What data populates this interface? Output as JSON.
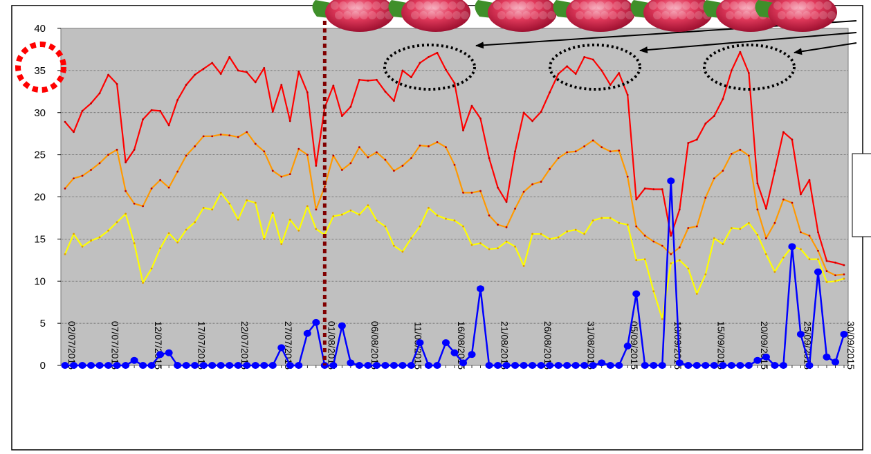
{
  "chart_data": {
    "type": "line",
    "title": "",
    "xlabel": "",
    "ylabel": "",
    "ylim": [
      0,
      40
    ],
    "y_ticks": [
      "0",
      "5",
      "10",
      "15",
      "20",
      "25",
      "30",
      "35",
      "40"
    ],
    "x_tick_labels": [
      "02/07/2015",
      "07/07/2015",
      "12/07/2015",
      "17/07/2015",
      "22/07/2015",
      "27/07/2015",
      "01/08/2015",
      "06/08/2015",
      "11/08/2015",
      "16/08/2015",
      "21/08/2015",
      "26/08/2015",
      "31/08/2015",
      "05/09/2015",
      "10/09/2015",
      "15/09/2015",
      "20/09/2015",
      "25/09/2015",
      "30/09/2015"
    ],
    "x_start": "02/07/2015",
    "x_end": "30/09/2015",
    "marker_date": "01/08/2015",
    "grid": "horizontal",
    "plot_background": "#c0c0c0",
    "series": [
      {
        "color": "#ff0000",
        "values": [
          28.9,
          27.7,
          30.2,
          31.1,
          32.3,
          34.5,
          33.4,
          24.1,
          25.6,
          29.2,
          30.3,
          30.2,
          28.5,
          31.5,
          33.3,
          34.5,
          35.2,
          35.9,
          34.6,
          36.6,
          35.0,
          34.8,
          33.6,
          35.3,
          30.1,
          33.3,
          29.0,
          34.9,
          32.4,
          23.7,
          30.6,
          33.2,
          29.6,
          30.7,
          33.9,
          33.8,
          33.9,
          32.5,
          31.4,
          35.0,
          34.2,
          35.9,
          36.6,
          37.1,
          35.1,
          33.5,
          27.9,
          30.8,
          29.3,
          24.6,
          21.1,
          19.4,
          25.4,
          30.0,
          29.0,
          30.1,
          32.4,
          34.6,
          35.5,
          34.6,
          36.6,
          36.3,
          35.0,
          33.3,
          34.7,
          32.1,
          19.7,
          21.0,
          20.9,
          20.9,
          15.4,
          18.5,
          26.4,
          26.8,
          28.7,
          29.6,
          31.6,
          35.0,
          37.2,
          34.7,
          21.6,
          18.6,
          23.1,
          27.7,
          26.8,
          20.3,
          22.0,
          15.8,
          12.4,
          12.2,
          11.9
        ]
      },
      {
        "color": "#ff9900",
        "values": [
          21.0,
          22.2,
          22.5,
          23.2,
          24.0,
          25.0,
          25.6,
          20.7,
          19.2,
          18.9,
          21.0,
          22.0,
          21.1,
          23.0,
          24.9,
          26.0,
          27.2,
          27.2,
          27.4,
          27.3,
          27.1,
          27.7,
          26.3,
          25.4,
          23.1,
          22.4,
          22.7,
          25.7,
          25.0,
          18.5,
          21.2,
          24.9,
          23.2,
          24.0,
          25.9,
          24.7,
          25.3,
          24.4,
          23.1,
          23.7,
          24.6,
          26.1,
          26.0,
          26.5,
          25.9,
          23.8,
          20.5,
          20.5,
          20.7,
          17.8,
          16.7,
          16.4,
          18.6,
          20.6,
          21.5,
          21.8,
          23.3,
          24.6,
          25.3,
          25.4,
          26.0,
          26.7,
          25.9,
          25.4,
          25.5,
          22.4,
          16.5,
          15.4,
          14.7,
          14.2,
          13.2,
          14.0,
          16.3,
          16.5,
          19.9,
          22.2,
          23.1,
          25.1,
          25.6,
          24.9,
          18.5,
          15.1,
          16.9,
          19.7,
          19.3,
          15.8,
          15.4,
          13.6,
          11.2,
          10.7,
          10.8
        ]
      },
      {
        "color": "#ffff00",
        "values": [
          13.2,
          15.6,
          14.1,
          14.8,
          15.2,
          16.0,
          17.0,
          18.0,
          14.5,
          9.8,
          11.5,
          13.9,
          15.7,
          14.6,
          16.1,
          17.0,
          18.7,
          18.5,
          20.5,
          19.2,
          17.3,
          19.6,
          19.3,
          15.0,
          18.1,
          14.4,
          17.3,
          16.0,
          18.9,
          16.2,
          15.5,
          17.7,
          17.9,
          18.4,
          17.9,
          19.0,
          17.2,
          16.5,
          14.2,
          13.5,
          15.1,
          16.5,
          18.7,
          17.8,
          17.4,
          17.2,
          16.5,
          14.3,
          14.5,
          13.8,
          13.9,
          14.7,
          14.1,
          11.8,
          15.6,
          15.6,
          15.0,
          15.2,
          15.9,
          16.1,
          15.6,
          17.2,
          17.5,
          17.5,
          16.9,
          16.7,
          12.5,
          12.6,
          8.8,
          5.5,
          12.1,
          12.5,
          11.5,
          8.5,
          10.8,
          15.1,
          14.4,
          16.3,
          16.2,
          16.9,
          15.5,
          13.2,
          11.1,
          12.8,
          14.1,
          13.8,
          12.6,
          12.6,
          9.9,
          10.0,
          10.3
        ]
      },
      {
        "color": "#0000ff",
        "values": [
          0,
          0,
          0,
          0,
          0,
          0,
          0,
          0,
          0.6,
          0,
          0,
          1.3,
          1.5,
          0,
          0,
          0,
          0,
          0,
          0,
          0,
          0,
          0,
          0,
          0,
          0,
          2.1,
          0,
          0,
          3.8,
          5.1,
          0,
          0,
          4.7,
          0.3,
          0,
          0,
          0,
          0,
          0,
          0,
          0,
          2.7,
          0,
          0,
          2.7,
          1.5,
          0.3,
          1.3,
          9.1,
          0,
          0,
          0,
          0,
          0,
          0,
          0,
          0,
          0,
          0,
          0,
          0,
          0,
          0.3,
          0,
          0,
          2.3,
          8.5,
          0,
          0,
          0,
          21.9,
          0.3,
          0,
          0,
          0,
          0,
          0,
          0,
          0,
          0,
          0.6,
          1.0,
          0,
          0,
          14.1,
          3.7,
          0,
          11.1,
          1.0,
          0.4,
          3.7
        ]
      }
    ]
  },
  "colors": {
    "plot_bg": "#c0c0c0",
    "marker_line": "#800000",
    "highlight_circle": "#ff0000",
    "ellipse": "#000000"
  },
  "image_strip": {
    "icon": "raspberry-icon"
  }
}
